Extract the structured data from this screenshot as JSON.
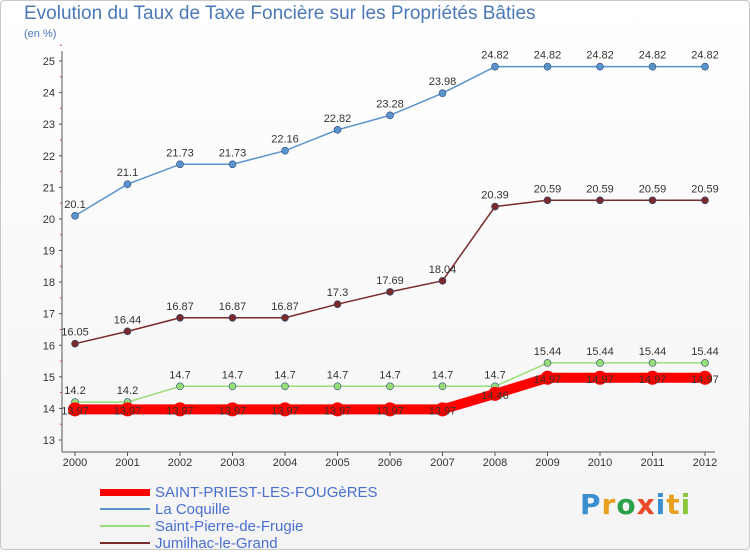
{
  "chart_data": {
    "type": "line",
    "title": "Evolution du Taux de Taxe Foncière sur les Propriétés Bâties",
    "unit_label": "(en %)",
    "x": [
      "2000",
      "2001",
      "2002",
      "2003",
      "2004",
      "2005",
      "2006",
      "2007",
      "2008",
      "2009",
      "2010",
      "2011",
      "2012"
    ],
    "ylim": [
      13,
      25
    ],
    "yticks": [
      "13",
      "14",
      "15",
      "16",
      "17",
      "18",
      "19",
      "20",
      "21",
      "22",
      "23",
      "24",
      "25"
    ],
    "grid": false,
    "legend_position": "bottom-left",
    "series": [
      {
        "name": "SAINT-PRIEST-LES-FOUGèRES",
        "color": "#ff0000",
        "values": [
          13.97,
          13.97,
          13.97,
          13.97,
          13.97,
          13.97,
          13.97,
          13.97,
          14.46,
          14.97,
          14.97,
          14.97,
          14.97
        ],
        "labels": [
          "13.97",
          "13.97",
          "13.97",
          "13.97",
          "13.97",
          "13.97",
          "13.97",
          "13.97",
          "14.46",
          "14.97",
          "14.97",
          "14.97",
          "14.97"
        ]
      },
      {
        "name": "La Coquille",
        "color": "#5b94cc",
        "values": [
          20.1,
          21.1,
          21.73,
          21.73,
          22.16,
          22.82,
          23.28,
          23.98,
          24.82,
          24.82,
          24.82,
          24.82,
          24.82
        ],
        "labels": [
          "20.1",
          "21.1",
          "21.73",
          "21.73",
          "22.16",
          "22.82",
          "23.28",
          "23.98",
          "24.82",
          "24.82",
          "24.82",
          "24.82",
          "24.82"
        ]
      },
      {
        "name": "Saint-Pierre-de-Frugie",
        "color": "#99dd77",
        "values": [
          14.2,
          14.2,
          14.7,
          14.7,
          14.7,
          14.7,
          14.7,
          14.7,
          14.7,
          15.44,
          15.44,
          15.44,
          15.44
        ],
        "labels": [
          "14.2",
          "14.2",
          "14.7",
          "14.7",
          "14.7",
          "14.7",
          "14.7",
          "14.7",
          "14.7",
          "15.44",
          "15.44",
          "15.44",
          "15.44"
        ]
      },
      {
        "name": "Jumilhac-le-Grand",
        "color": "#7a2a2a",
        "values": [
          16.05,
          16.44,
          16.87,
          16.87,
          16.87,
          17.3,
          17.69,
          18.04,
          20.39,
          20.59,
          20.59,
          20.59,
          20.59
        ],
        "labels": [
          "16.05",
          "16.44",
          "16.87",
          "16.87",
          "16.87",
          "17.3",
          "17.69",
          "18.04",
          "20.39",
          "20.59",
          "20.59",
          "20.59",
          "20.59"
        ]
      }
    ]
  },
  "legend": [
    {
      "label": "SAINT-PRIEST-LES-FOUGèRES",
      "color": "#ff0000",
      "thickness": 7
    },
    {
      "label": "La Coquille",
      "color": "#5b94cc",
      "thickness": 2
    },
    {
      "label": "Saint-Pierre-de-Frugie",
      "color": "#99dd77",
      "thickness": 2
    },
    {
      "label": "Jumilhac-le-Grand",
      "color": "#7a2a2a",
      "thickness": 2
    }
  ],
  "logo": {
    "letters": [
      "P",
      "r",
      "o",
      "x",
      "i",
      "t",
      "i"
    ],
    "colors": [
      "#3a8fd0",
      "#e8a020",
      "#2aa14a",
      "#e84a2a",
      "#3a8fd0",
      "#e8a020",
      "#8cc63f"
    ]
  }
}
